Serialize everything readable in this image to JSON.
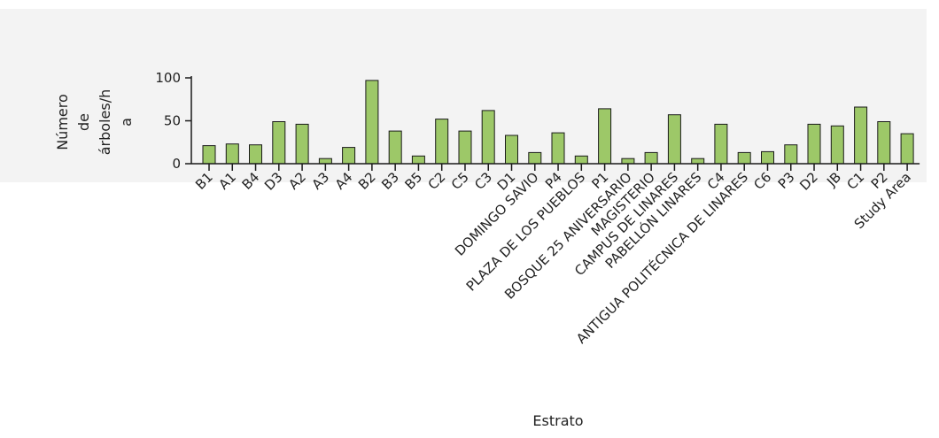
{
  "chart_data": {
    "type": "bar",
    "title": "",
    "xlabel": "Estrato",
    "ylabel_lines": [
      "Número",
      "de",
      "árboles/h",
      "a"
    ],
    "ylim": [
      0,
      100
    ],
    "yticks": [
      "0",
      "50",
      "100"
    ],
    "grid": false,
    "legend": "none",
    "categories": [
      "B1",
      "A1",
      "B4",
      "D3",
      "A2",
      "A3",
      "A4",
      "B2",
      "B3",
      "B5",
      "C2",
      "C5",
      "C3",
      "D1",
      "DOMINGO SAVIO",
      "P4",
      "PLAZA DE LOS PUEBLOS",
      "P1",
      "BOSQUE 25 ANIVERSARIO",
      "MAGISTERIO",
      "CAMPUS DE LINARES",
      "PABELLÓN LINARES",
      "C4",
      "ANTIGUA POLITÉCNICA DE LINARES",
      "C6",
      "P3",
      "D2",
      "JB",
      "C1",
      "P2",
      "Study Area"
    ],
    "values": [
      21,
      23,
      22,
      49,
      46,
      6,
      19,
      97,
      38,
      9,
      52,
      38,
      62,
      33,
      13,
      36,
      9,
      64,
      6,
      13,
      57,
      6,
      46,
      13,
      14,
      22,
      46,
      44,
      66,
      49,
      35
    ],
    "colors": {
      "bar_fill": "#9dc868",
      "bar_stroke": "#1a1a1a",
      "plot_band": "#f3f3f3",
      "axis": "#1a1a1a"
    }
  }
}
